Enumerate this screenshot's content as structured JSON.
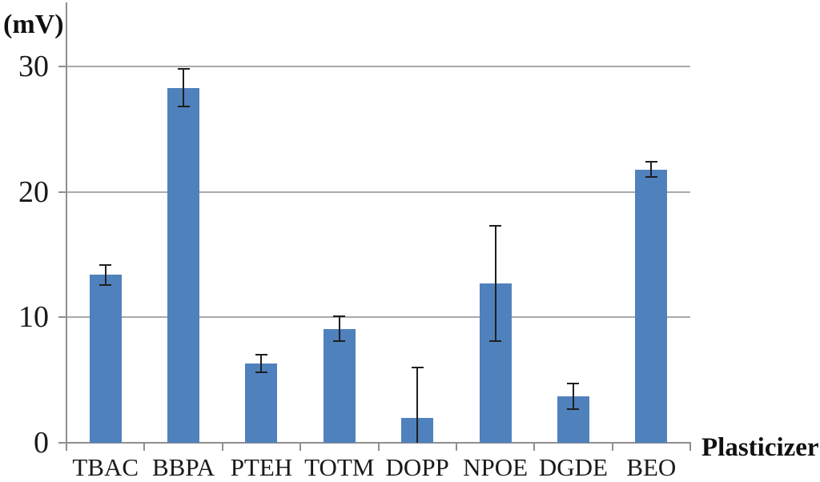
{
  "chart_data": {
    "type": "bar",
    "title": "",
    "xlabel": "Plasticizer",
    "ylabel": "(mV)",
    "categories": [
      "TBAC",
      "BBPA",
      "PTEH",
      "TOTM",
      "DOPP",
      "NPOE",
      "DGDE",
      "BEO"
    ],
    "values": [
      13.4,
      28.3,
      6.3,
      9.1,
      2.0,
      12.7,
      3.7,
      21.8
    ],
    "errors": [
      0.8,
      1.5,
      0.7,
      1.0,
      4.0,
      4.6,
      1.0,
      0.6
    ],
    "error_bar_note": "symmetric error bars; DOPP lower whisker clipped at the x-axis",
    "ylim": [
      0,
      35
    ],
    "yticks": [
      0,
      10,
      20,
      30
    ],
    "grid": "horizontal major gridlines at 10, 20, 30",
    "legend": "none",
    "colors": {
      "bar_fill": "#4F81BD",
      "error_bar": "#1f1f1f",
      "axis": "#8f8f8f",
      "gridline": "#aaaaaa",
      "text": "#1a1a1a"
    }
  }
}
